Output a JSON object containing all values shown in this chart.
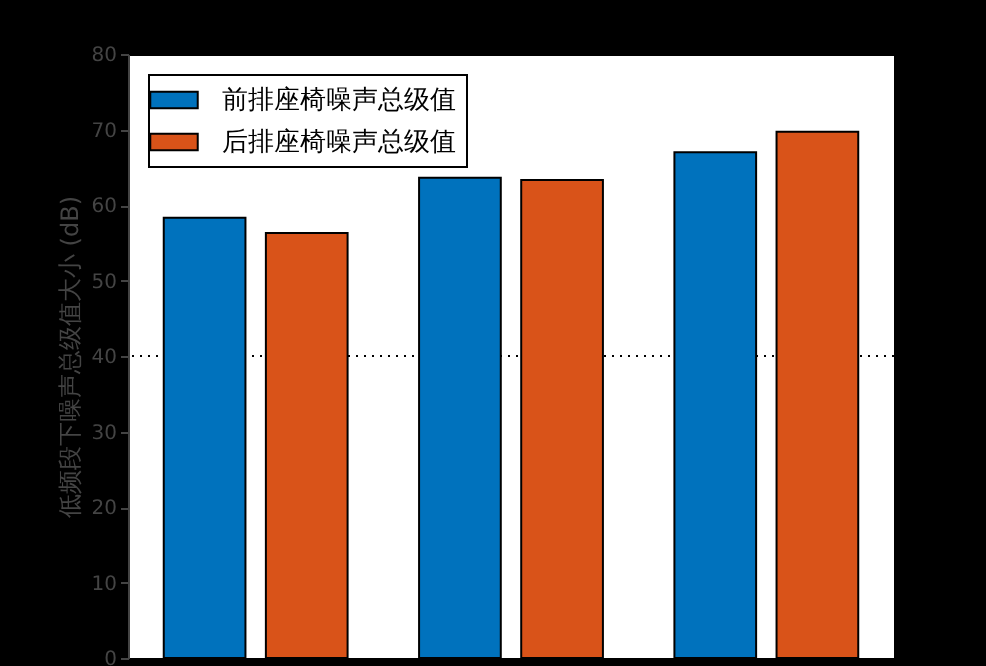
{
  "chart_data": {
    "type": "bar",
    "ylabel": "低频段下噪声总级值大小 (dB)",
    "categories": [
      null,
      null,
      null
    ],
    "series": [
      {
        "name": "前排座椅噪声总级值",
        "color": "#0072bd",
        "values": [
          58.3,
          63.6,
          67.0
        ]
      },
      {
        "name": "后排座椅噪声总级值",
        "color": "#d95319",
        "values": [
          56.3,
          63.3,
          69.7
        ]
      }
    ],
    "ylim": [
      0,
      80
    ],
    "yticks": [
      0,
      10,
      20,
      30,
      40,
      50,
      60,
      70,
      80
    ],
    "ref_lines": [
      {
        "axis": "y",
        "value": 40,
        "line_style": "dotted",
        "color": "#000000"
      }
    ],
    "legend": "top left",
    "tick_labels": "y"
  }
}
